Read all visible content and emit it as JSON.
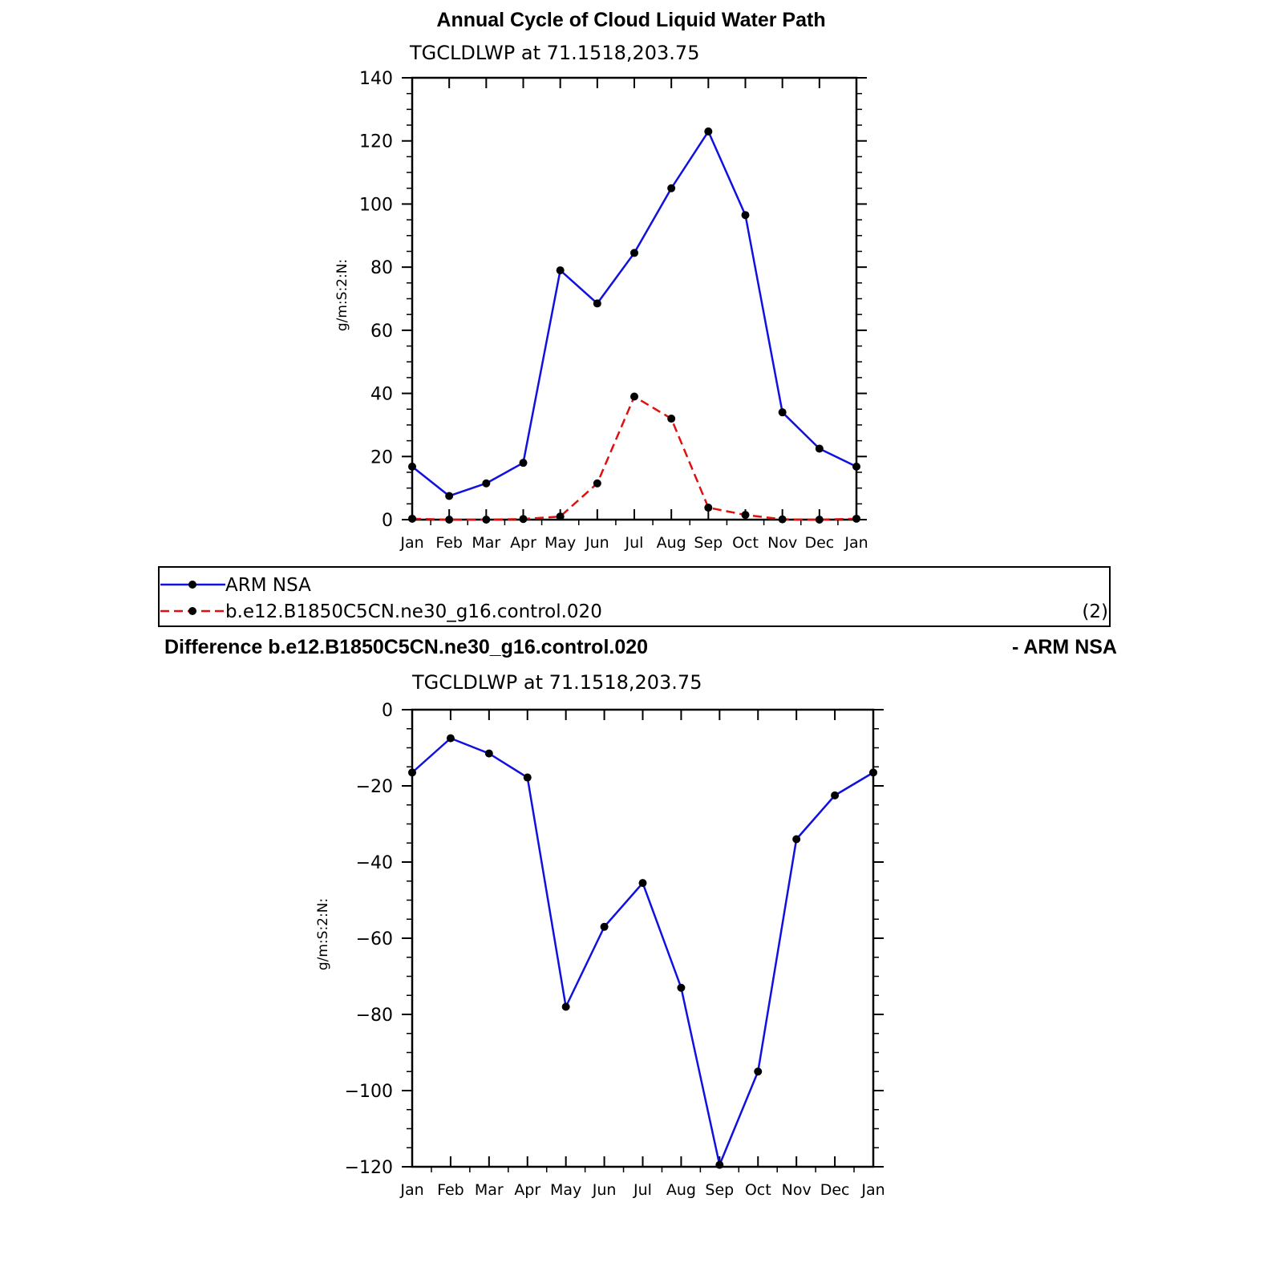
{
  "title": "Annual Cycle of Cloud Liquid Water Path",
  "legend": {
    "entries": [
      "ARM NSA",
      "b.e12.B1850C5CN.ne30_g16.control.020"
    ],
    "note": "(2)"
  },
  "difference_title_left": "Difference b.e12.B1850C5CN.ne30_g16.control.020",
  "difference_title_right": "- ARM NSA",
  "colors": {
    "obs": "#1010e0",
    "model": "#e01010",
    "marker": "#000000"
  },
  "chart_data": [
    {
      "type": "line",
      "subtitle": "TGCLDLWP  at  71.1518,203.75",
      "ylabel": "g/m:S:2:N:",
      "xlabel": "",
      "ylim": [
        0,
        140
      ],
      "yticks": [
        0,
        20,
        40,
        60,
        80,
        100,
        120,
        140
      ],
      "categories": [
        "Jan",
        "Feb",
        "Mar",
        "Apr",
        "May",
        "Jun",
        "Jul",
        "Aug",
        "Sep",
        "Oct",
        "Nov",
        "Dec",
        "Jan"
      ],
      "series": [
        {
          "name": "ARM NSA",
          "style": "solid",
          "color": "#1010e0",
          "values": [
            16.8,
            7.5,
            11.5,
            18.0,
            79.0,
            68.5,
            84.5,
            105.0,
            123.0,
            96.5,
            34.0,
            22.5,
            16.8
          ]
        },
        {
          "name": "b.e12.B1850C5CN.ne30_g16.control.020",
          "style": "dashed",
          "color": "#e01010",
          "values": [
            0.3,
            0.0,
            0.0,
            0.2,
            1.0,
            11.5,
            39.0,
            32.0,
            3.8,
            1.5,
            0.1,
            0.0,
            0.3
          ]
        }
      ]
    },
    {
      "type": "line",
      "subtitle": "TGCLDLWP  at  71.1518,203.75",
      "ylabel": "g/m:S:2:N:",
      "xlabel": "",
      "ylim": [
        -120,
        0
      ],
      "yticks": [
        0,
        -20,
        -40,
        -60,
        -80,
        -100,
        -120
      ],
      "categories": [
        "Jan",
        "Feb",
        "Mar",
        "Apr",
        "May",
        "Jun",
        "Jul",
        "Aug",
        "Sep",
        "Oct",
        "Nov",
        "Dec",
        "Jan"
      ],
      "series": [
        {
          "name": "",
          "style": "solid",
          "color": "#1010e0",
          "values": [
            -16.5,
            -7.5,
            -11.5,
            -17.8,
            -78.0,
            -57.0,
            -45.5,
            -73.0,
            -119.5,
            -95.0,
            -34.0,
            -22.5,
            -16.5
          ]
        }
      ]
    }
  ]
}
